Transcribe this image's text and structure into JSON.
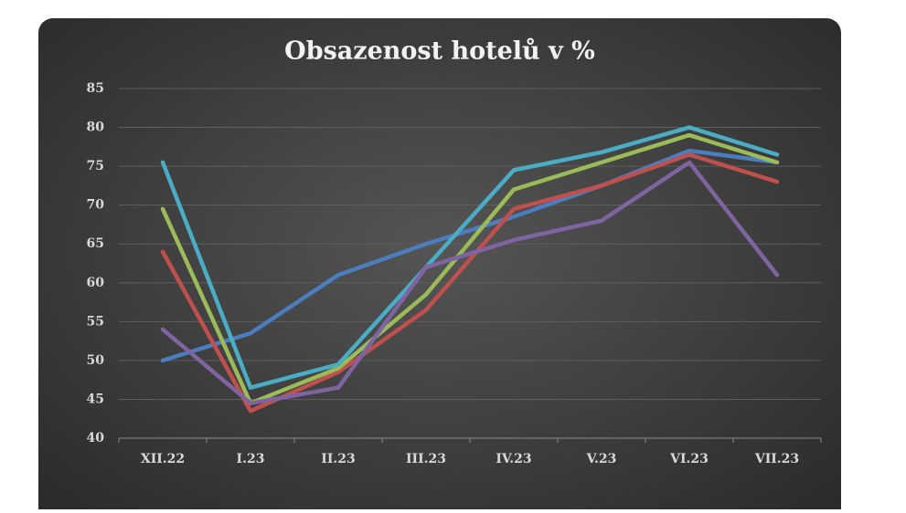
{
  "chart_data": {
    "type": "line",
    "title": "Obsazenost hotelů v %",
    "categories": [
      "XII.22",
      "I.23",
      "II.23",
      "III.23",
      "IV.23",
      "V.23",
      "VI.23",
      "VII.23"
    ],
    "series": [
      {
        "color": "#4a7ebf",
        "values": [
          50,
          53.5,
          61,
          65,
          68.5,
          72.5,
          77,
          75.5
        ]
      },
      {
        "color": "#c0504d",
        "values": [
          64,
          43.5,
          48.5,
          56.5,
          69.5,
          72.5,
          76.5,
          73
        ]
      },
      {
        "color": "#9bbb59",
        "values": [
          69.5,
          44.5,
          49,
          58.5,
          72,
          75.5,
          79,
          75.5
        ]
      },
      {
        "color": "#4bacc6",
        "values": [
          75.5,
          46.5,
          49.5,
          62,
          74.5,
          76.8,
          80,
          76.5
        ]
      },
      {
        "color": "#8064a2",
        "values": [
          54,
          44.5,
          46.5,
          62,
          65.5,
          68,
          75.5,
          61
        ]
      }
    ],
    "ylim": [
      40,
      85
    ],
    "yticks": [
      40,
      45,
      50,
      55,
      60,
      65,
      70,
      75,
      80,
      85
    ],
    "grid": true
  }
}
